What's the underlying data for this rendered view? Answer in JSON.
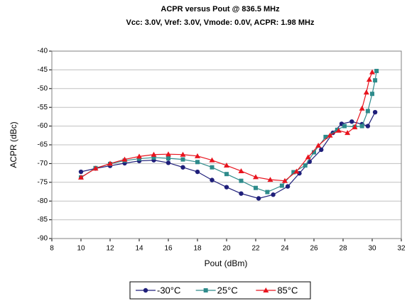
{
  "chart_data": {
    "type": "line",
    "title": "ACPR versus Pout @ 836.5 MHz",
    "subtitle": "Vcc: 3.0V, Vref: 3.0V, Vmode: 0.0V, ACPR: 1.98 MHz",
    "x_label": "Pout (dBm)",
    "y_label": "ACPR (dBc)",
    "xlim": [
      8,
      32
    ],
    "xticks": [
      8,
      10,
      12,
      14,
      16,
      18,
      20,
      22,
      24,
      26,
      28,
      30,
      32
    ],
    "ylim": [
      -90,
      -40
    ],
    "yticks": [
      -90,
      -85,
      -80,
      -75,
      -70,
      -65,
      -60,
      -55,
      -50,
      -45,
      -40
    ],
    "grid": true,
    "legend": "bottom",
    "series": [
      {
        "name": "-30°C",
        "color": "#1f1f7a",
        "marker": "circle",
        "x": [
          10,
          11,
          12,
          13,
          14,
          15,
          16,
          17,
          18,
          19,
          20,
          21,
          22.2,
          23.2,
          24.2,
          25,
          25.7,
          26.5,
          27.3,
          27.9,
          28.6,
          29.3,
          29.7,
          30.2
        ],
        "values": [
          -72.2,
          -71.3,
          -70.6,
          -69.9,
          -69.3,
          -69.1,
          -69.8,
          -71.0,
          -72.2,
          -74.4,
          -76.3,
          -78.0,
          -79.3,
          -78.3,
          -76.1,
          -72.6,
          -69.5,
          -66.3,
          -61.8,
          -59.4,
          -58.8,
          -59.5,
          -60.0,
          -56.3
        ]
      },
      {
        "name": "25°C",
        "color": "#2e8b8b",
        "marker": "square",
        "x": [
          10,
          11,
          12,
          13,
          14,
          15,
          16,
          17,
          18,
          19,
          20,
          21,
          22,
          22.8,
          23.8,
          24.6,
          25.4,
          26,
          26.8,
          27.6,
          28.1,
          28.8,
          29.3,
          29.7,
          30,
          30.2,
          30.3
        ],
        "values": [
          -73.7,
          -71.2,
          -70.1,
          -69.2,
          -68.7,
          -68.4,
          -68.6,
          -68.9,
          -69.6,
          -71.0,
          -72.8,
          -74.6,
          -76.5,
          -77.6,
          -75.9,
          -72.3,
          -70.5,
          -67.0,
          -62.9,
          -61.0,
          -60.0,
          -60.2,
          -60.0,
          -56.0,
          -51.4,
          -47.8,
          -45.3
        ]
      },
      {
        "name": "85°C",
        "color": "#e8141e",
        "marker": "triangle",
        "x": [
          10,
          11,
          12,
          13,
          14,
          15,
          16,
          17,
          18,
          19,
          20,
          21,
          22,
          23,
          24,
          24.8,
          25.6,
          26.3,
          27.1,
          27.7,
          28.3,
          28.8,
          29.3,
          29.6,
          29.8,
          30
        ],
        "values": [
          -73.7,
          -71.3,
          -70.0,
          -68.9,
          -68.1,
          -67.6,
          -67.5,
          -67.6,
          -68.0,
          -69.1,
          -70.5,
          -72.0,
          -73.6,
          -74.3,
          -74.6,
          -72.1,
          -68.3,
          -65.2,
          -62.5,
          -61.2,
          -61.8,
          -60.3,
          -55.3,
          -51.0,
          -47.6,
          -45.6
        ]
      }
    ]
  }
}
